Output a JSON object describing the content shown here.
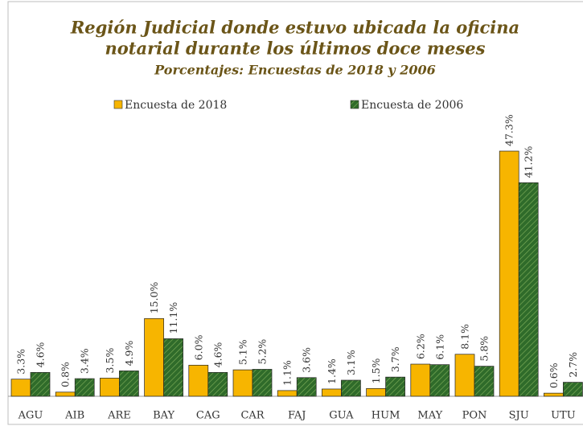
{
  "chart_data": {
    "type": "bar",
    "title": [
      "Región Judicial donde estuvo ubicada la oficina",
      "notarial durante los últimos doce meses"
    ],
    "subtitle": "Porcentajes: Encuestas de 2018 y 2006",
    "categories": [
      "AGU",
      "AIB",
      "ARE",
      "BAY",
      "CAG",
      "CAR",
      "FAJ",
      "GUA",
      "HUM",
      "MAY",
      "PON",
      "SJU",
      "UTU"
    ],
    "series": [
      {
        "name": "Encuesta de 2018",
        "color": "#f7b500",
        "values": [
          3.3,
          0.8,
          3.5,
          15.0,
          6.0,
          5.1,
          1.1,
          1.4,
          1.5,
          6.2,
          8.1,
          47.3,
          0.6
        ],
        "value_labels": [
          "3.3%",
          "0.8%",
          "3.5%",
          "15.0%",
          "6.0%",
          "5.1%",
          "1.1%",
          "1.4%",
          "1.5%",
          "6.2%",
          "8.1%",
          "47.3%",
          "0.6%"
        ]
      },
      {
        "name": "Encuesta de 2006",
        "color": "#2f6b2a",
        "hatch": true,
        "values": [
          4.6,
          3.4,
          4.9,
          11.1,
          4.6,
          5.2,
          3.6,
          3.1,
          3.7,
          6.1,
          5.8,
          41.2,
          2.7
        ],
        "value_labels": [
          "4.6%",
          "3.4%",
          "4.9%",
          "11.1%",
          "4.6%",
          "5.2%",
          "3.6%",
          "3.1%",
          "3.7%",
          "6.1%",
          "5.8%",
          "41.2%",
          "2.7%"
        ]
      }
    ],
    "legend": "top"
  }
}
